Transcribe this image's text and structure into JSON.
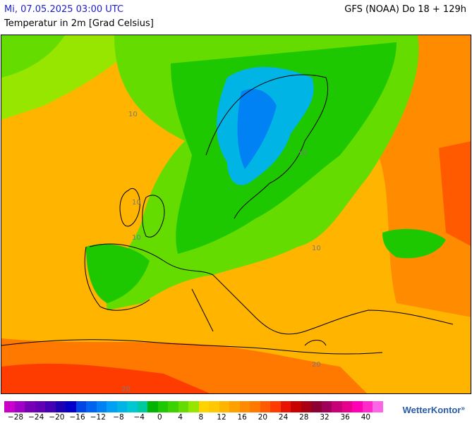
{
  "header": {
    "datetime": "Mi, 07.05.2025 03:00 UTC",
    "subtitle": "Temperatur in 2m [Grad Celsius]",
    "model": "GFS (NOAA) Do 18 + 129h"
  },
  "map": {
    "contour_labels": [
      "10",
      "10",
      "10",
      "10",
      "10",
      "20",
      "20"
    ]
  },
  "legend": {
    "colors": [
      "#c800c8",
      "#a000c8",
      "#7800b4",
      "#6400b4",
      "#4600b4",
      "#1e00b4",
      "#0000c8",
      "#0046e6",
      "#0064f0",
      "#0082f5",
      "#00a0f5",
      "#00b4e6",
      "#00c8d2",
      "#00c8a0",
      "#00b400",
      "#1ec800",
      "#3cd200",
      "#64dc00",
      "#96e600",
      "#ffd200",
      "#ffc800",
      "#ffb400",
      "#ffa000",
      "#ff8c00",
      "#ff7800",
      "#ff5a00",
      "#ff3c00",
      "#e61400",
      "#c80000",
      "#aa0014",
      "#8c0032",
      "#a0005a",
      "#c80078",
      "#e6008c",
      "#ff00b4",
      "#ff28c8",
      "#ff64e6"
    ],
    "tick_labels": [
      "−28",
      "−24",
      "−20",
      "−16",
      "−12",
      "−8",
      "−4",
      "0",
      "4",
      "8",
      "12",
      "16",
      "20",
      "24",
      "28",
      "32",
      "36",
      "40"
    ]
  },
  "brand": {
    "name": "WetterKontor"
  }
}
